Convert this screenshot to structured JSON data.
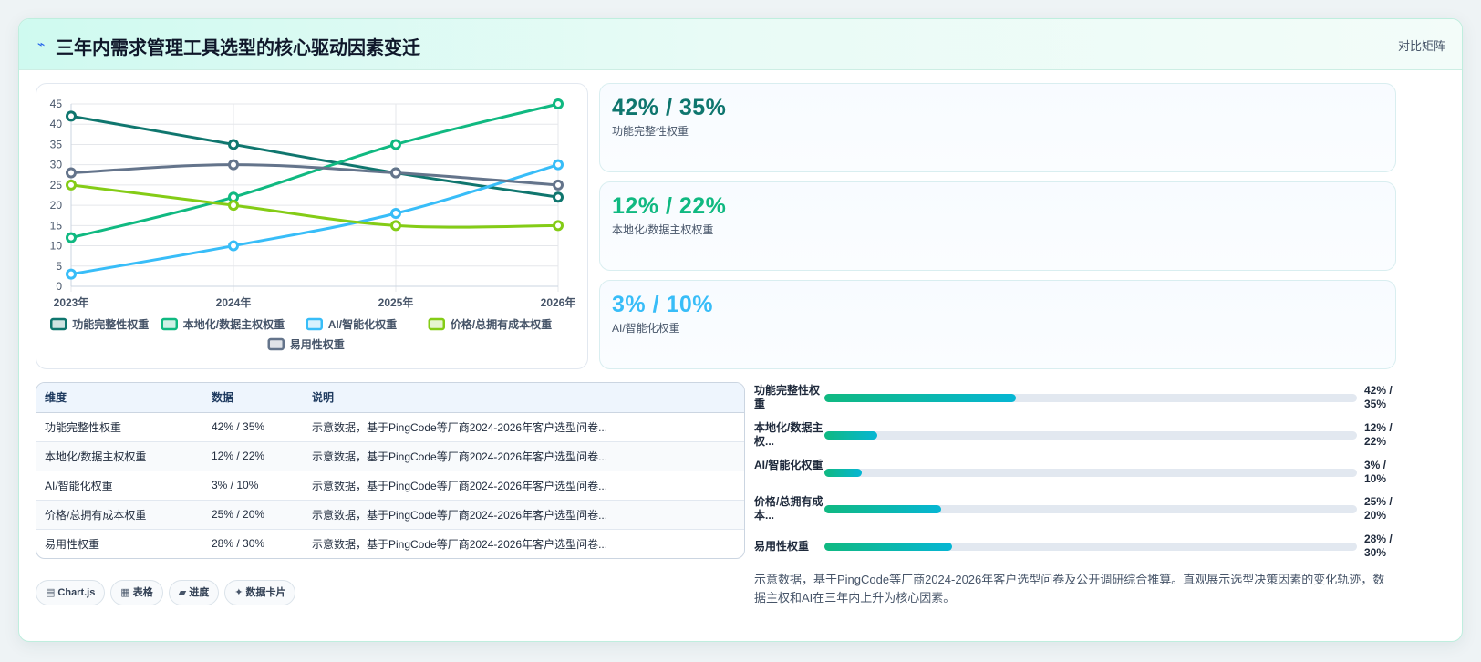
{
  "header": {
    "icon": "lightning-icon",
    "title": "三年内需求管理工具选型的核心驱动因素变迁",
    "badge": "对比矩阵"
  },
  "colors": {
    "functional": "#0f766e",
    "localization": "#10b981",
    "ai": "#38bdf8",
    "price": "#84cc16",
    "usability": "#64748b"
  },
  "chart_data": {
    "type": "line",
    "categories": [
      "2023年",
      "2024年",
      "2025年",
      "2026年"
    ],
    "ylim": [
      0,
      45
    ],
    "yticks": [
      "0",
      "5",
      "10",
      "15",
      "20",
      "25",
      "30",
      "35",
      "40",
      "45"
    ],
    "grid": true,
    "legend_position": "bottom",
    "series": [
      {
        "name": "功能完整性权重",
        "values": [
          42,
          35,
          28,
          22
        ],
        "color": "#0f766e"
      },
      {
        "name": "本地化/数据主权权重",
        "values": [
          12,
          22,
          35,
          45
        ],
        "color": "#10b981"
      },
      {
        "name": "AI/智能化权重",
        "values": [
          3,
          10,
          18,
          30
        ],
        "color": "#38bdf8"
      },
      {
        "name": "价格/总拥有成本权重",
        "values": [
          25,
          20,
          15,
          15
        ],
        "color": "#84cc16"
      },
      {
        "name": "易用性权重",
        "values": [
          28,
          30,
          28,
          25
        ],
        "color": "#64748b"
      }
    ]
  },
  "kpis": [
    {
      "value": "42% / 35%",
      "label": "功能完整性权重",
      "color": "#0f766e"
    },
    {
      "value": "12% / 22%",
      "label": "本地化/数据主权权重",
      "color": "#10b981"
    },
    {
      "value": "3% / 10%",
      "label": "AI/智能化权重",
      "color": "#38bdf8"
    }
  ],
  "table": {
    "headers": [
      "维度",
      "数据",
      "说明"
    ],
    "rows": [
      [
        "功能完整性权重",
        "42% / 35%",
        "示意数据，基于PingCode等厂商2024-2026年客户选型问卷..."
      ],
      [
        "本地化/数据主权权重",
        "12% / 22%",
        "示意数据，基于PingCode等厂商2024-2026年客户选型问卷..."
      ],
      [
        "AI/智能化权重",
        "3% / 10%",
        "示意数据，基于PingCode等厂商2024-2026年客户选型问卷..."
      ],
      [
        "价格/总拥有成本权重",
        "25% / 20%",
        "示意数据，基于PingCode等厂商2024-2026年客户选型问卷..."
      ],
      [
        "易用性权重",
        "28% / 30%",
        "示意数据，基于PingCode等厂商2024-2026年客户选型问卷..."
      ]
    ]
  },
  "progress": [
    {
      "name": "功能完整性权重",
      "value": "42% / 35%",
      "fraction": 0.36
    },
    {
      "name": "本地化/数据主权...",
      "value": "12% / 22%",
      "fraction": 0.1
    },
    {
      "name": "AI/智能化权重",
      "value": "3% / 10%",
      "fraction": 0.07
    },
    {
      "name": "价格/总拥有成本...",
      "value": "25% / 20%",
      "fraction": 0.22
    },
    {
      "name": "易用性权重",
      "value": "28% / 30%",
      "fraction": 0.24
    }
  ],
  "note": "示意数据，基于PingCode等厂商2024-2026年客户选型问卷及公开调研综合推算。直观展示选型决策因素的变化轨迹，数据主权和AI在三年内上升为核心因素。",
  "chips": [
    {
      "icon": "chart-icon",
      "glyph": "▤",
      "label": "Chart.js"
    },
    {
      "icon": "table-icon",
      "glyph": "▦",
      "label": "表格"
    },
    {
      "icon": "progress-icon",
      "glyph": "▰",
      "label": "进度"
    },
    {
      "icon": "sparkle-icon",
      "glyph": "✦",
      "label": "数据卡片"
    }
  ]
}
